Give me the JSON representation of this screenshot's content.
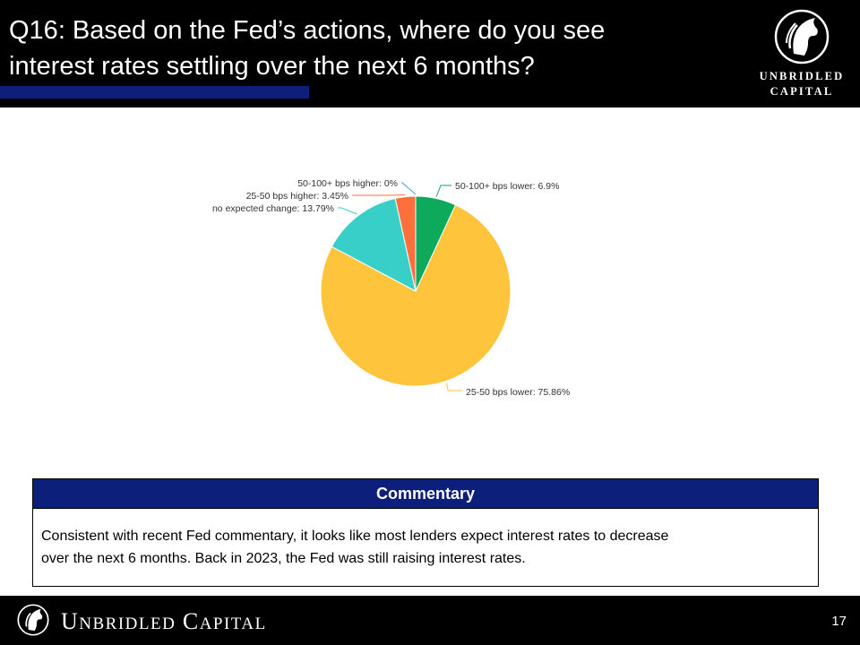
{
  "header": {
    "title_line1": "Q16: Based on the Fed’s actions, where do you see",
    "title_line2": "interest rates settling over the next 6 months?",
    "logo_line1": "UNBRIDLED",
    "logo_line2": "CAPITAL",
    "logo_icon": "horse-head-icon"
  },
  "chart_data": {
    "type": "pie",
    "slices": [
      {
        "label": "50-100+ bps lower: 6.9%",
        "value": 6.9,
        "color": "#0daa5c"
      },
      {
        "label": "25-50 bps lower: 75.86%",
        "value": 75.86,
        "color": "#fec43c"
      },
      {
        "label": "no expected change: 13.79%",
        "value": 13.79,
        "color": "#38cfc9"
      },
      {
        "label": "25-50 bps higher: 3.45%",
        "value": 3.45,
        "color": "#ff6f3c"
      },
      {
        "label": "50-100+ bps higher: 0%",
        "value": 0,
        "color": "#4a9fe0"
      }
    ]
  },
  "commentary": {
    "heading": "Commentary",
    "line1": "Consistent with recent Fed commentary, it looks like most lenders expect interest rates to decrease",
    "line2": "over the next 6 months. Back in 2023, the Fed was still raising interest rates."
  },
  "footer": {
    "brand_U": "U",
    "brand_nbridled": "NBRIDLED",
    "brand_C": "C",
    "brand_apital": "APITAL",
    "page_number": "17",
    "logo_icon": "horse-head-icon"
  }
}
